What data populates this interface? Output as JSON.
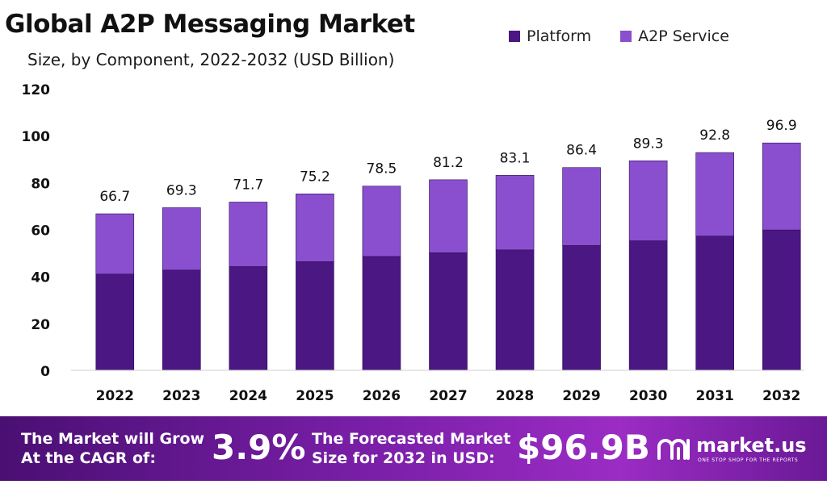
{
  "header": {
    "title": "Global A2P Messaging Market",
    "subtitle": "Size, by Component, 2022-2032 (USD Billion)"
  },
  "chart_data": {
    "type": "bar",
    "stacked": true,
    "categories": [
      "2022",
      "2023",
      "2024",
      "2025",
      "2026",
      "2027",
      "2028",
      "2029",
      "2030",
      "2031",
      "2032"
    ],
    "series": [
      {
        "name": "Platform",
        "color": "#4b1782",
        "values": [
          41.0,
          42.7,
          44.2,
          46.3,
          48.5,
          50.1,
          51.3,
          53.2,
          55.2,
          57.2,
          59.8
        ]
      },
      {
        "name": "A2P Service",
        "color": "#8a4fce",
        "values": [
          25.7,
          26.6,
          27.5,
          28.9,
          30.0,
          31.1,
          31.8,
          33.2,
          34.1,
          35.6,
          37.1
        ]
      }
    ],
    "totals": [
      "66.7",
      "69.3",
      "71.7",
      "75.2",
      "78.5",
      "81.2",
      "83.1",
      "86.4",
      "89.3",
      "92.8",
      "96.9"
    ],
    "yticks": [
      "0",
      "20",
      "40",
      "60",
      "80",
      "100",
      "120"
    ],
    "ylim": [
      0,
      120
    ],
    "legend_position": "top-right",
    "grid": false
  },
  "footer": {
    "cagr_label_line1": "The Market will Grow",
    "cagr_label_line2": "At the CAGR of:",
    "cagr_value": "3.9%",
    "forecast_label_line1": "The Forecasted Market",
    "forecast_label_line2": "Size for 2032 in USD:",
    "forecast_value": "$96.9B",
    "brand_name": "market.us",
    "brand_tagline": "ONE STOP SHOP FOR THE REPORTS"
  }
}
